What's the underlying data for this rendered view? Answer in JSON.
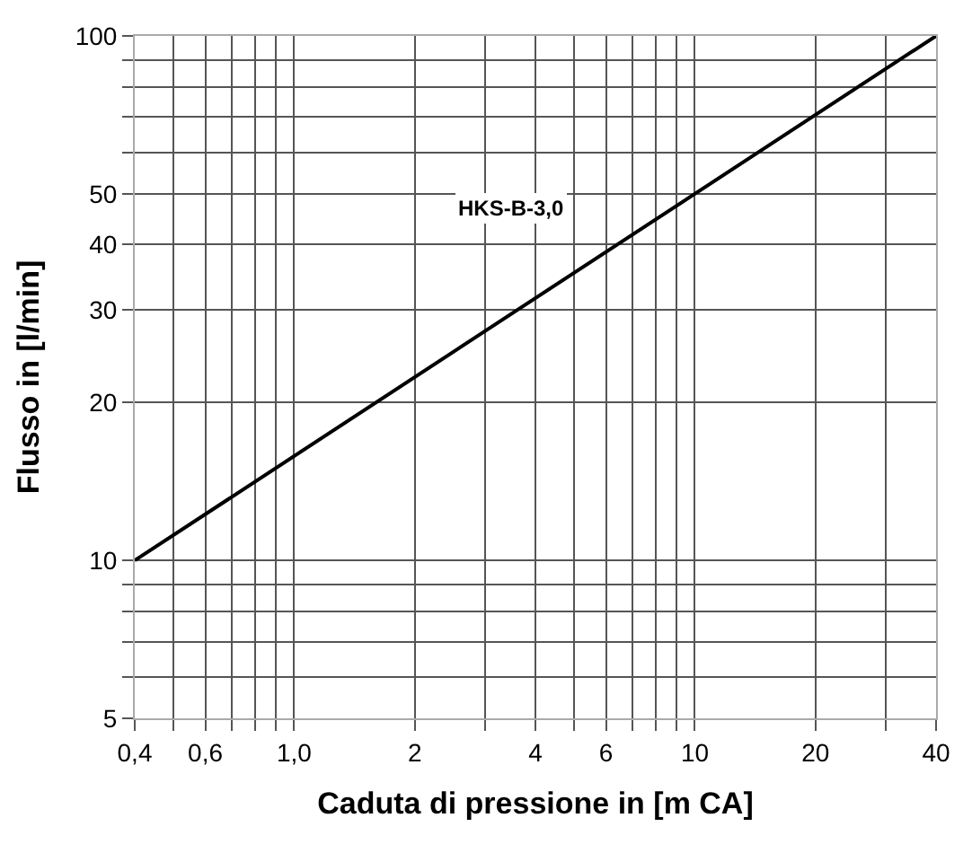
{
  "chart_data": {
    "type": "line",
    "xlabel": "Caduta di pressione in [m CA]",
    "ylabel": "Flusso in [l/min]",
    "log": "xy",
    "grid": true,
    "legend": false,
    "marker": "none",
    "line_style": "solid",
    "x": [
      0.4,
      40
    ],
    "series": [
      {
        "name": "HKS-B-3,0",
        "color": "#000000",
        "values": [
          10,
          100
        ]
      }
    ],
    "xlim": [
      0.4,
      40
    ],
    "xticks": [
      {
        "value": 0.4,
        "label": "0,4"
      },
      {
        "value": 0.5,
        "label": null
      },
      {
        "value": 0.6,
        "label": "0,6"
      },
      {
        "value": 0.7,
        "label": null
      },
      {
        "value": 0.8,
        "label": null
      },
      {
        "value": 0.9,
        "label": null
      },
      {
        "value": 1,
        "label": "1,0"
      },
      2,
      {
        "value": 3,
        "label": null
      },
      4,
      {
        "value": 5,
        "label": null
      },
      6,
      {
        "value": 7,
        "label": null
      },
      {
        "value": 8,
        "label": null
      },
      {
        "value": 9,
        "label": null
      },
      10,
      20,
      {
        "value": 30,
        "label": null
      },
      40
    ],
    "ylim": [
      5,
      100
    ],
    "yticks": [
      5,
      {
        "value": 6,
        "label": null
      },
      {
        "value": 7,
        "label": null
      },
      {
        "value": 8,
        "label": null
      },
      {
        "value": 9,
        "label": null
      },
      10,
      20,
      30,
      40,
      50,
      {
        "value": 60,
        "label": null
      },
      {
        "value": 70,
        "label": null
      },
      {
        "value": 80,
        "label": null
      },
      {
        "value": 90,
        "label": null
      },
      100
    ]
  }
}
